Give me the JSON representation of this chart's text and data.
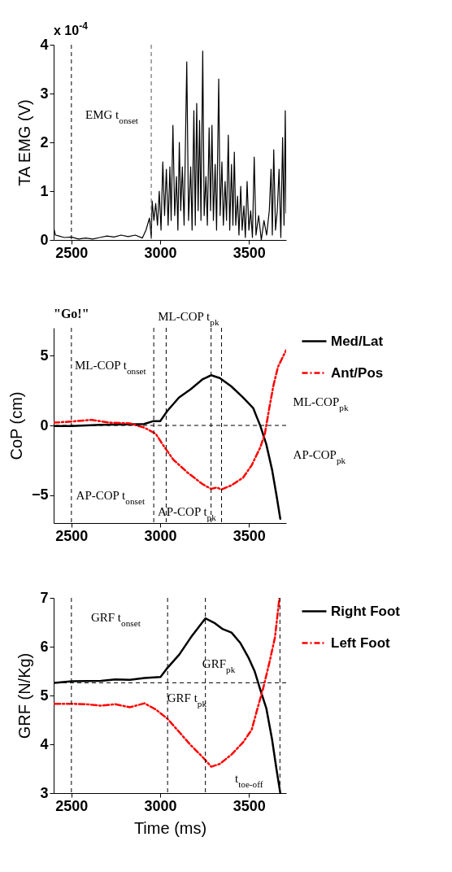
{
  "chart_data": [
    {
      "type": "line",
      "ylabel": "TA EMG (V)",
      "xlim": [
        2400,
        3710
      ],
      "xticks": [
        2500,
        3000,
        3500
      ],
      "ylim": [
        0,
        4
      ],
      "yticks": [
        0,
        1,
        2,
        3,
        4
      ],
      "series": [
        {
          "color": "#000000",
          "x": [
            2400,
            2410,
            2430,
            2460,
            2500,
            2540,
            2580,
            2620,
            2660,
            2700,
            2740,
            2780,
            2820,
            2860,
            2900,
            2920,
            2940,
            2950,
            2955,
            2965,
            2975,
            2985,
            2995,
            3005,
            3015,
            3025,
            3035,
            3045,
            3055,
            3062,
            3072,
            3082,
            3092,
            3100,
            3108,
            3116,
            3125,
            3135,
            3150,
            3160,
            3172,
            3180,
            3190,
            3198,
            3206,
            3214,
            3222,
            3230,
            3240,
            3248,
            3258,
            3266,
            3276,
            3284,
            3292,
            3300,
            3310,
            3318,
            3330,
            3338,
            3348,
            3356,
            3366,
            3374,
            3384,
            3392,
            3402,
            3410,
            3418,
            3426,
            3436,
            3444,
            3454,
            3462,
            3472,
            3480,
            3490,
            3500,
            3510,
            3520,
            3530,
            3540,
            3555,
            3570,
            3585,
            3600,
            3615,
            3625,
            3632,
            3640,
            3650,
            3660,
            3670,
            3680,
            3690,
            3698,
            3705,
            3710
          ],
          "values": [
            0.25,
            0.1,
            0.08,
            0.05,
            0.06,
            0.02,
            0.04,
            0.02,
            0.05,
            0.08,
            0.06,
            0.1,
            0.07,
            0.1,
            0.04,
            0.2,
            0.45,
            0.05,
            0.8,
            0.4,
            0.75,
            0.3,
            1.0,
            0.2,
            1.6,
            0.5,
            1.45,
            0.3,
            1.5,
            0.4,
            2.35,
            0.5,
            1.3,
            0.2,
            2.0,
            0.6,
            1.5,
            0.3,
            3.65,
            0.4,
            1.5,
            0.2,
            2.65,
            0.3,
            2.8,
            0.6,
            2.45,
            0.4,
            3.87,
            0.5,
            1.3,
            0.3,
            2.3,
            0.6,
            2.35,
            0.4,
            1.55,
            0.2,
            3.3,
            0.5,
            1.6,
            0.3,
            1.2,
            0.4,
            2.15,
            0.2,
            1.55,
            0.3,
            1.8,
            0.3,
            0.9,
            0.1,
            1.1,
            0.2,
            0.7,
            0.05,
            1.2,
            0.2,
            0.6,
            0.05,
            1.7,
            0.1,
            0.5,
            0.0,
            0.4,
            0.1,
            0.6,
            1.45,
            0.1,
            1.85,
            0.2,
            0.6,
            1.45,
            0.05,
            2.1,
            0.3,
            2.65,
            0.55
          ]
        }
      ],
      "ref_lines": [
        {
          "axis": "x",
          "value": 2500,
          "color": "#000000",
          "line_style": "dashed"
        },
        {
          "axis": "x",
          "value": 2950,
          "color": "#555555",
          "line_style": "dashed"
        }
      ],
      "annotations": [
        "x 10$^{-4}$",
        "EMG t$_{onset}$"
      ]
    },
    {
      "type": "line",
      "ylabel": "CoP (cm)",
      "xlim": [
        2400,
        3710
      ],
      "xticks": [
        2500,
        3000,
        3500
      ],
      "ylim": [
        -7,
        7
      ],
      "yticks": [
        -5,
        0,
        5
      ],
      "legend": "top right",
      "series": [
        {
          "name": "Med/Lat",
          "color": "#000000",
          "x": [
            2400,
            2500,
            2664,
            2828,
            2910,
            2959,
            3000,
            3041,
            3106,
            3172,
            3238,
            3287,
            3336,
            3401,
            3467,
            3524,
            3565,
            3598,
            3631,
            3656,
            3677
          ],
          "values": [
            -0.05,
            -0.05,
            0.05,
            0.08,
            0.1,
            0.3,
            0.3,
            1.05,
            2.0,
            2.6,
            3.3,
            3.6,
            3.4,
            2.8,
            2.0,
            1.25,
            -0.05,
            -1.35,
            -3.2,
            -5.05,
            -6.7
          ]
        },
        {
          "name": "Ant/Pos",
          "color": "#ff0000",
          "line_style": "dashed",
          "x": [
            2400,
            2500,
            2615,
            2713,
            2828,
            2910,
            2975,
            3024,
            3074,
            3156,
            3238,
            3287,
            3320,
            3344,
            3401,
            3467,
            3516,
            3565,
            3590,
            3615,
            3639,
            3664,
            3710
          ],
          "values": [
            0.2,
            0.28,
            0.4,
            0.2,
            0.15,
            -0.15,
            -0.6,
            -1.55,
            -2.45,
            -3.4,
            -4.2,
            -4.55,
            -4.45,
            -4.6,
            -4.3,
            -3.75,
            -2.85,
            -1.55,
            -0.6,
            1.25,
            2.9,
            4.2,
            5.4
          ]
        }
      ],
      "ref_lines": [
        {
          "axis": "x",
          "value": 2500,
          "color": "#000000",
          "line_style": "dashed"
        },
        {
          "axis": "x",
          "value": 2964,
          "color": "#000000",
          "line_style": "dashed"
        },
        {
          "axis": "x",
          "value": 3034,
          "color": "#000000",
          "line_style": "dashed"
        },
        {
          "axis": "x",
          "value": 3287,
          "color": "#000000",
          "line_style": "dashed"
        },
        {
          "axis": "x",
          "value": 3346,
          "color": "#000000",
          "line_style": "dashed"
        },
        {
          "axis": "y",
          "value": 0,
          "color": "#000000",
          "line_style": "dashed"
        }
      ],
      "annotations": [
        "\"Go!\"",
        "ML-COP t$_{onset}$",
        "ML-COP t$_{pk}$",
        "ML-COP$_{pk}$",
        "AP-COP$_{pk}$",
        "AP-COP t$_{onset}$",
        "AP-COP t$_{pk}$"
      ]
    },
    {
      "type": "line",
      "xlabel": "Time (ms)",
      "ylabel": "GRF (N/Kg)",
      "xlim": [
        2400,
        3710
      ],
      "xticks": [
        2500,
        3000,
        3500
      ],
      "ylim": [
        3,
        7
      ],
      "yticks": [
        3,
        4,
        5,
        6,
        7
      ],
      "legend": "top right",
      "series": [
        {
          "name": "Right Foot",
          "color": "#000000",
          "x": [
            2405,
            2503,
            2667,
            2748,
            2830,
            2912,
            3002,
            3042,
            3108,
            3173,
            3255,
            3304,
            3353,
            3402,
            3451,
            3500,
            3533,
            3565,
            3598,
            3631,
            3655,
            3677
          ],
          "values": [
            5.26,
            5.29,
            5.3,
            5.33,
            5.32,
            5.36,
            5.38,
            5.57,
            5.84,
            6.19,
            6.58,
            6.49,
            6.36,
            6.29,
            6.08,
            5.76,
            5.49,
            5.11,
            4.74,
            4.09,
            3.5,
            3.0
          ]
        },
        {
          "name": "Left Foot",
          "color": "#ff0000",
          "line_style": "dashed",
          "x": [
            2405,
            2503,
            2585,
            2667,
            2748,
            2830,
            2912,
            2977,
            3042,
            3108,
            3173,
            3239,
            3288,
            3337,
            3402,
            3467,
            3516,
            3549,
            3582,
            3614,
            3647,
            3672
          ],
          "values": [
            4.83,
            4.83,
            4.82,
            4.79,
            4.82,
            4.76,
            4.84,
            4.71,
            4.52,
            4.25,
            3.98,
            3.74,
            3.54,
            3.6,
            3.79,
            4.04,
            4.3,
            4.74,
            5.17,
            5.65,
            6.19,
            7.0
          ]
        }
      ],
      "ref_lines": [
        {
          "axis": "x",
          "value": 2500,
          "color": "#000000",
          "line_style": "dashed"
        },
        {
          "axis": "x",
          "value": 3042,
          "color": "#000000",
          "line_style": "dashed"
        },
        {
          "axis": "x",
          "value": 3255,
          "color": "#000000",
          "line_style": "dashed"
        },
        {
          "axis": "x",
          "value": 3675,
          "color": "#000000",
          "line_style": "dashed"
        },
        {
          "axis": "y",
          "value": 5.26,
          "color": "#000000",
          "line_style": "dashed"
        }
      ],
      "annotations": [
        "GRF t$_{onset}$",
        "GRF$_{pk}$",
        "GRF t$_{pk}$",
        "t$_{toe-off}$"
      ]
    }
  ]
}
